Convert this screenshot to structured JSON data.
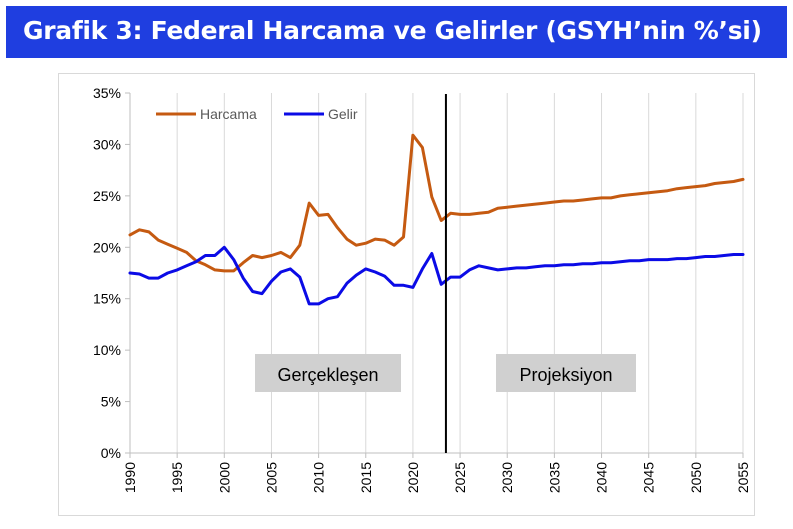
{
  "header": {
    "title": "Grafik 3: Federal Harcama ve Gelirler (GSYH’nin %’si)"
  },
  "colors": {
    "header_bg": "#1f3ee0",
    "header_text": "#ffffff",
    "harcama": "#c55a11",
    "gelir": "#0b0be6",
    "annotation_box": "#d0d0d0",
    "divider": "#000000"
  },
  "chart_data": {
    "type": "line",
    "title": "Grafik 3: Federal Harcama ve Gelirler (GSYH’nin %’si)",
    "xlabel": "",
    "ylabel": "",
    "xlim": [
      1990,
      2055
    ],
    "ylim": [
      0,
      35
    ],
    "y_ticks": [
      0,
      5,
      10,
      15,
      20,
      25,
      30,
      35
    ],
    "y_tick_labels": [
      "0%",
      "5%",
      "10%",
      "15%",
      "20%",
      "25%",
      "30%",
      "35%"
    ],
    "x_ticks": [
      1990,
      1995,
      2000,
      2005,
      2010,
      2015,
      2020,
      2025,
      2030,
      2035,
      2040,
      2045,
      2050,
      2055
    ],
    "x_tick_labels": [
      "1990",
      "1995",
      "2000",
      "2005",
      "2010",
      "2015",
      "2020",
      "2025",
      "2030",
      "2035",
      "2040",
      "2045",
      "2050",
      "2055"
    ],
    "grid": {
      "vertical": true,
      "horizontal": false
    },
    "legend": {
      "position": "top-left",
      "entries": [
        "Harcama",
        "Gelir"
      ]
    },
    "divider_year": 2023.5,
    "annotations": [
      "Gerçekleşen",
      "Projeksiyon"
    ],
    "x": [
      1990,
      1991,
      1992,
      1993,
      1994,
      1995,
      1996,
      1997,
      1998,
      1999,
      2000,
      2001,
      2002,
      2003,
      2004,
      2005,
      2006,
      2007,
      2008,
      2009,
      2010,
      2011,
      2012,
      2013,
      2014,
      2015,
      2016,
      2017,
      2018,
      2019,
      2020,
      2021,
      2022,
      2023,
      2024,
      2025,
      2026,
      2027,
      2028,
      2029,
      2030,
      2031,
      2032,
      2033,
      2034,
      2035,
      2036,
      2037,
      2038,
      2039,
      2040,
      2041,
      2042,
      2043,
      2044,
      2045,
      2046,
      2047,
      2048,
      2049,
      2050,
      2051,
      2052,
      2053,
      2054,
      2055
    ],
    "series": [
      {
        "name": "Harcama",
        "color": "#c55a11",
        "values": [
          21.2,
          21.7,
          21.5,
          20.7,
          20.3,
          19.9,
          19.5,
          18.7,
          18.3,
          17.8,
          17.7,
          17.7,
          18.5,
          19.2,
          19.0,
          19.2,
          19.5,
          19.0,
          20.2,
          24.3,
          23.1,
          23.2,
          21.9,
          20.8,
          20.2,
          20.4,
          20.8,
          20.7,
          20.2,
          21.0,
          30.9,
          29.7,
          24.9,
          22.6,
          23.3,
          23.2,
          23.2,
          23.3,
          23.4,
          23.8,
          23.9,
          24.0,
          24.1,
          24.2,
          24.3,
          24.4,
          24.5,
          24.5,
          24.6,
          24.7,
          24.8,
          24.8,
          25.0,
          25.1,
          25.2,
          25.3,
          25.4,
          25.5,
          25.7,
          25.8,
          25.9,
          26.0,
          26.2,
          26.3,
          26.4,
          26.6
        ]
      },
      {
        "name": "Gelir",
        "color": "#0b0be6",
        "values": [
          17.5,
          17.4,
          17.0,
          17.0,
          17.5,
          17.8,
          18.2,
          18.6,
          19.2,
          19.2,
          20.0,
          18.8,
          17.0,
          15.7,
          15.5,
          16.7,
          17.6,
          17.9,
          17.1,
          14.5,
          14.5,
          15.0,
          15.2,
          16.5,
          17.3,
          17.9,
          17.6,
          17.2,
          16.3,
          16.3,
          16.1,
          17.9,
          19.4,
          16.4,
          17.1,
          17.1,
          17.8,
          18.2,
          18.0,
          17.8,
          17.9,
          18.0,
          18.0,
          18.1,
          18.2,
          18.2,
          18.3,
          18.3,
          18.4,
          18.4,
          18.5,
          18.5,
          18.6,
          18.7,
          18.7,
          18.8,
          18.8,
          18.8,
          18.9,
          18.9,
          19.0,
          19.1,
          19.1,
          19.2,
          19.3,
          19.3
        ]
      }
    ]
  }
}
